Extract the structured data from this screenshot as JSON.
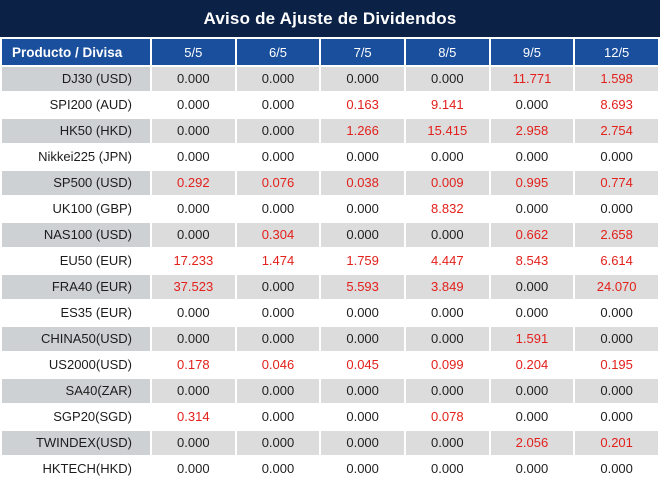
{
  "title": "Aviso de Ajuste de Dividendos",
  "table": {
    "product_header": "Producto / Divisa",
    "date_headers": [
      "5/5",
      "6/5",
      "7/5",
      "8/5",
      "9/5",
      "12/5"
    ],
    "zero_value": "0.000",
    "rows": [
      {
        "product": "DJ30 (USD)",
        "values": [
          "0.000",
          "0.000",
          "0.000",
          "0.000",
          "11.771",
          "1.598"
        ]
      },
      {
        "product": "SPI200 (AUD)",
        "values": [
          "0.000",
          "0.000",
          "0.163",
          "9.141",
          "0.000",
          "8.693"
        ]
      },
      {
        "product": "HK50 (HKD)",
        "values": [
          "0.000",
          "0.000",
          "1.266",
          "15.415",
          "2.958",
          "2.754"
        ]
      },
      {
        "product": "Nikkei225 (JPN)",
        "values": [
          "0.000",
          "0.000",
          "0.000",
          "0.000",
          "0.000",
          "0.000"
        ]
      },
      {
        "product": "SP500 (USD)",
        "values": [
          "0.292",
          "0.076",
          "0.038",
          "0.009",
          "0.995",
          "0.774"
        ]
      },
      {
        "product": "UK100 (GBP)",
        "values": [
          "0.000",
          "0.000",
          "0.000",
          "8.832",
          "0.000",
          "0.000"
        ]
      },
      {
        "product": "NAS100 (USD)",
        "values": [
          "0.000",
          "0.304",
          "0.000",
          "0.000",
          "0.662",
          "2.658"
        ]
      },
      {
        "product": "EU50 (EUR)",
        "values": [
          "17.233",
          "1.474",
          "1.759",
          "4.447",
          "8.543",
          "6.614"
        ]
      },
      {
        "product": "FRA40 (EUR)",
        "values": [
          "37.523",
          "0.000",
          "5.593",
          "3.849",
          "0.000",
          "24.070"
        ]
      },
      {
        "product": "ES35 (EUR)",
        "values": [
          "0.000",
          "0.000",
          "0.000",
          "0.000",
          "0.000",
          "0.000"
        ]
      },
      {
        "product": "CHINA50(USD)",
        "values": [
          "0.000",
          "0.000",
          "0.000",
          "0.000",
          "1.591",
          "0.000"
        ]
      },
      {
        "product": "US2000(USD)",
        "values": [
          "0.178",
          "0.046",
          "0.045",
          "0.099",
          "0.204",
          "0.195"
        ]
      },
      {
        "product": "SA40(ZAR)",
        "values": [
          "0.000",
          "0.000",
          "0.000",
          "0.000",
          "0.000",
          "0.000"
        ]
      },
      {
        "product": "SGP20(SGD)",
        "values": [
          "0.314",
          "0.000",
          "0.000",
          "0.078",
          "0.000",
          "0.000"
        ]
      },
      {
        "product": "TWINDEX(USD)",
        "values": [
          "0.000",
          "0.000",
          "0.000",
          "0.000",
          "2.056",
          "0.201"
        ]
      },
      {
        "product": "HKTECH(HKD)",
        "values": [
          "0.000",
          "0.000",
          "0.000",
          "0.000",
          "0.000",
          "0.000"
        ]
      }
    ]
  },
  "colors": {
    "title_bg": "#0b2145",
    "header_bg": "#1a4f9d",
    "row_gray_product": "#ced1d4",
    "row_gray_value": "#dcdcdc",
    "row_white": "#ffffff",
    "value_red": "#e3201b",
    "value_black": "#1f1f1f",
    "header_text": "#ffffff"
  }
}
